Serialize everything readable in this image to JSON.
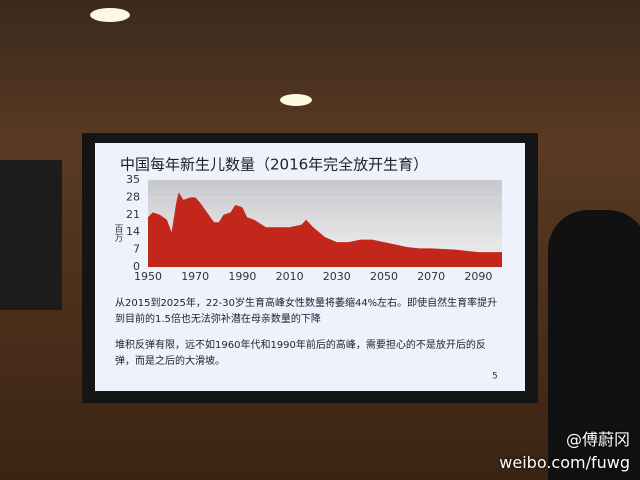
{
  "chart_data": {
    "type": "area",
    "title": "中国每年新生儿数量（2016年完全放开生育）",
    "ylabel": "百万",
    "x": [
      1950,
      1952,
      1955,
      1958,
      1960,
      1962,
      1963,
      1965,
      1968,
      1970,
      1972,
      1975,
      1978,
      1980,
      1982,
      1985,
      1987,
      1990,
      1992,
      1995,
      2000,
      2005,
      2010,
      2015,
      2017,
      2020,
      2025,
      2030,
      2035,
      2040,
      2045,
      2050,
      2055,
      2060,
      2065,
      2070,
      2080,
      2090,
      2100
    ],
    "values": [
      20,
      22,
      21,
      19,
      14,
      26,
      30,
      27,
      28,
      28,
      26,
      22,
      18,
      18,
      21,
      22,
      25,
      24,
      20,
      19,
      16,
      16,
      16,
      17,
      19,
      16,
      12,
      10,
      10,
      11,
      11,
      10,
      9,
      8,
      7.5,
      7.5,
      7,
      6,
      6
    ],
    "color": "#c3261a",
    "xlim": [
      1950,
      2100
    ],
    "xticks": [
      1950,
      1970,
      1990,
      2010,
      2030,
      2050,
      2070,
      2090
    ],
    "ylim": [
      0,
      35
    ],
    "yticks": [
      0,
      7,
      14,
      21,
      28,
      35
    ],
    "grid": true,
    "bullets": [
      "从2015到2025年，22-30岁生育高峰女性数量将萎缩44%左右。即使自然生育率提升到目前的1.5倍也无法弥补潜在母亲数量的下降",
      "堆积反弹有限，远不如1960年代和1990年前后的高峰，需要担心的不是放开后的反弹，而是之后的大滑坡。"
    ],
    "page_number": "5",
    "watermark": [
      "@傅蔚冈",
      "weibo.com/fuwg"
    ]
  }
}
